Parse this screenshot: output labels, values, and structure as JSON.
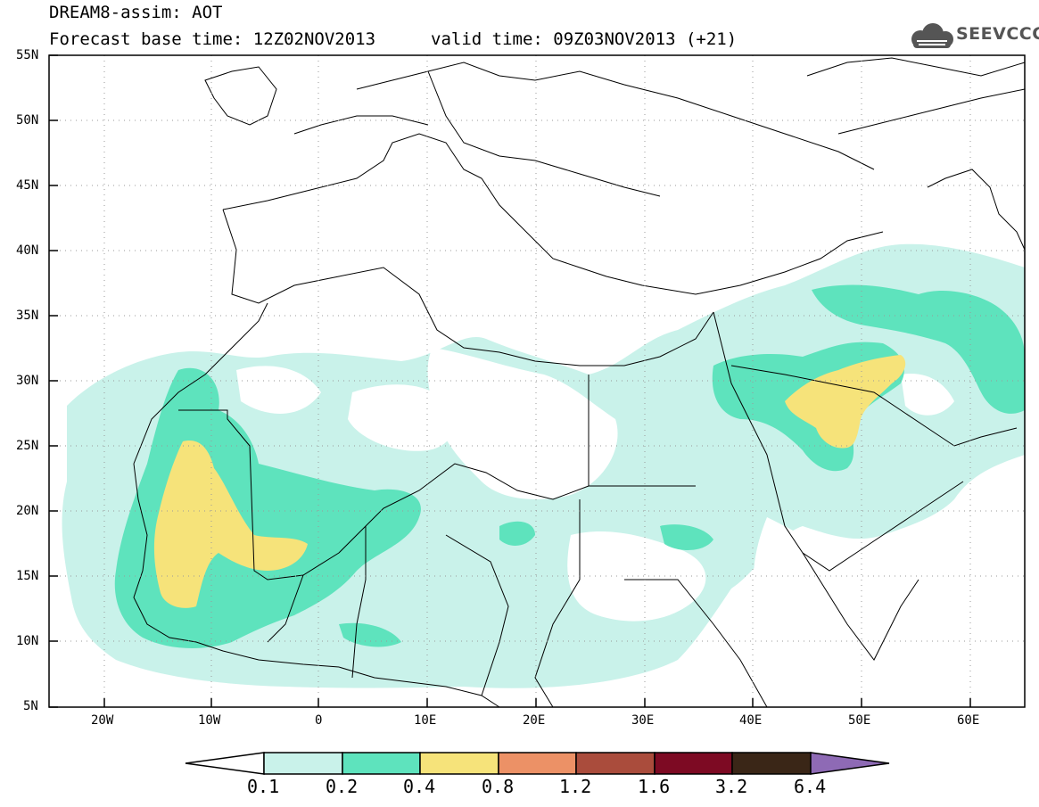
{
  "header": {
    "title": "DREAM8-assim: AOT",
    "base_time": "Forecast base time: 12Z02NOV2013",
    "valid_time": "valid time: 09Z03NOV2013 (+21)",
    "logo_text": "SEEVCCC"
  },
  "axes": {
    "lat_labels": [
      "55N",
      "50N",
      "45N",
      "40N",
      "35N",
      "30N",
      "25N",
      "20N",
      "15N",
      "10N",
      "5N"
    ],
    "lon_labels": [
      "20W",
      "10W",
      "0",
      "10E",
      "20E",
      "30E",
      "40E",
      "50E",
      "60E"
    ]
  },
  "legend": {
    "labels": [
      "0.1",
      "0.2",
      "0.4",
      "0.8",
      "1.2",
      "1.6",
      "3.2",
      "6.4"
    ],
    "colors": [
      "#ffffff",
      "#c9f2ea",
      "#5ee3bd",
      "#f6e37a",
      "#ec9166",
      "#aa4c3c",
      "#7d0a23",
      "#3a2617",
      "#8e6ab5"
    ]
  },
  "map": {
    "title_field": "AOT",
    "colors": {
      "c01": "#c9f2ea",
      "c02": "#5ee3bd",
      "c04": "#f6e37a",
      "border": "#000000",
      "grid": "#999999"
    }
  }
}
